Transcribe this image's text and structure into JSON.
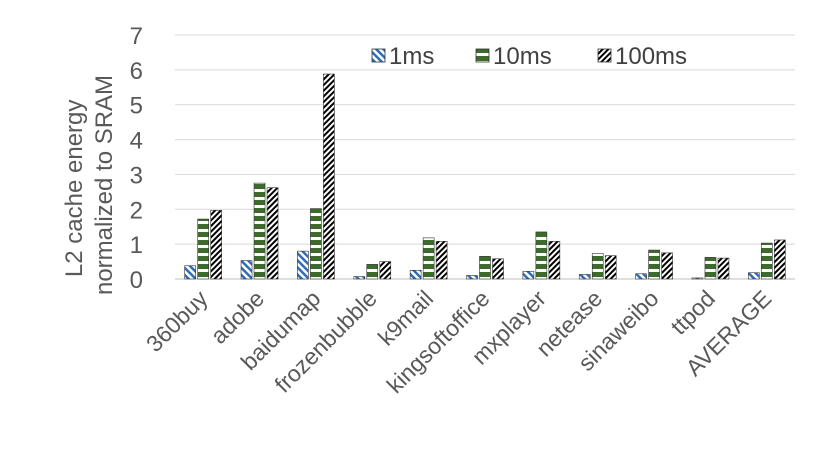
{
  "chart_data": {
    "type": "bar",
    "ylabel": [
      "L2 cache energy",
      "normalized to SRAM"
    ],
    "ylim": [
      0,
      7
    ],
    "yticks": [
      0,
      1,
      2,
      3,
      4,
      5,
      6,
      7
    ],
    "grid": true,
    "legend_position": "top-right",
    "categories": [
      "360buy",
      "adobe",
      "baidumap",
      "frozenbubble",
      "k9mail",
      "kingsoftoffice",
      "mxplayer",
      "netease",
      "sinaweibo",
      "ttpod",
      "AVERAGE"
    ],
    "series": [
      {
        "name": "1ms",
        "values": [
          0.38,
          0.53,
          0.8,
          0.07,
          0.25,
          0.1,
          0.22,
          0.13,
          0.15,
          0.03,
          0.18
        ]
      },
      {
        "name": "10ms",
        "values": [
          1.72,
          2.75,
          2.02,
          0.42,
          1.18,
          0.65,
          1.35,
          0.73,
          0.83,
          0.62,
          1.03
        ]
      },
      {
        "name": "100ms",
        "values": [
          1.97,
          2.62,
          5.88,
          0.5,
          1.08,
          0.58,
          1.08,
          0.67,
          0.75,
          0.6,
          1.12
        ]
      }
    ]
  }
}
